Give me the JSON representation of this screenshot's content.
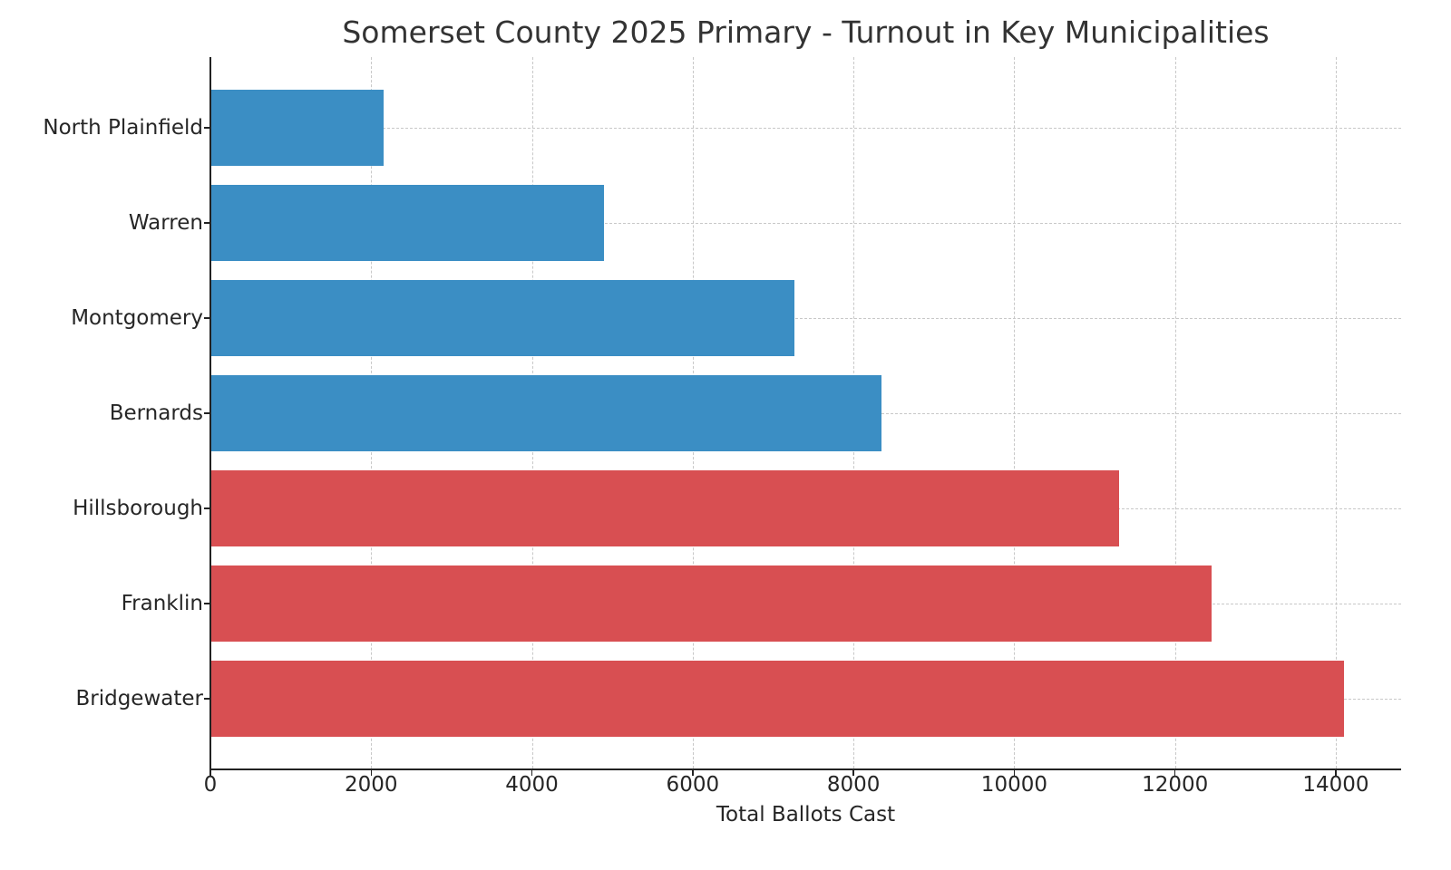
{
  "chart_data": {
    "type": "bar",
    "orientation": "horizontal",
    "title": "Somerset County 2025 Primary - Turnout in Key Municipalities",
    "xlabel": "Total Ballots Cast",
    "ylabel": "",
    "xlim": [
      0,
      14800
    ],
    "xticks": [
      0,
      2000,
      4000,
      6000,
      8000,
      10000,
      12000,
      14000
    ],
    "grid": true,
    "legend": null,
    "categories": [
      "North Plainfield",
      "Warren",
      "Montgomery",
      "Bernards",
      "Hillsborough",
      "Franklin",
      "Bridgewater"
    ],
    "values": [
      2150,
      4900,
      7270,
      8350,
      11300,
      12460,
      14100
    ],
    "colors": [
      "#3b8ec4",
      "#3b8ec4",
      "#3b8ec4",
      "#3b8ec4",
      "#d84f52",
      "#d84f52",
      "#d84f52"
    ]
  },
  "title": "Somerset County 2025 Primary - Turnout in Key Municipalities",
  "xlabel": "Total Ballots Cast",
  "xtick_labels": [
    "0",
    "2000",
    "4000",
    "6000",
    "8000",
    "10000",
    "12000",
    "14000"
  ],
  "ytick_labels": [
    "North Plainfield",
    "Warren",
    "Montgomery",
    "Bernards",
    "Hillsborough",
    "Franklin",
    "Bridgewater"
  ]
}
